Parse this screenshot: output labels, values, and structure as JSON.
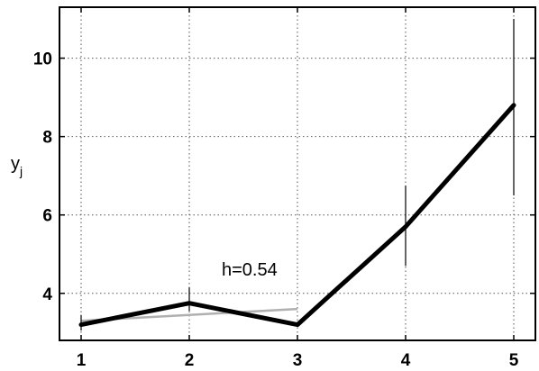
{
  "chart_data": {
    "type": "line",
    "x": [
      1,
      2,
      3,
      4,
      5
    ],
    "series": [
      {
        "values": [
          3.2,
          3.75,
          3.2,
          5.7,
          8.8
        ],
        "color": "#000000",
        "style": "thick"
      },
      {
        "x": [
          1,
          2,
          3
        ],
        "values": [
          3.3,
          3.45,
          3.6
        ],
        "color": "#b0b0b0",
        "style": "thin"
      }
    ],
    "error_bars": [
      {
        "x": 1,
        "low": 3.05,
        "high": 3.45
      },
      {
        "x": 2,
        "low": 3.55,
        "high": 4.15
      },
      {
        "x": 4,
        "low": 4.7,
        "high": 6.75
      },
      {
        "x": 5,
        "low": 6.5,
        "high": 11.0
      }
    ],
    "ylabel": "y",
    "ylabel_subscript": "j",
    "xlabel": "",
    "title": "",
    "xlim": [
      0.8,
      5.2
    ],
    "ylim": [
      2.8,
      11.3
    ],
    "xticks": [
      1,
      2,
      3,
      4,
      5
    ],
    "yticks": [
      4,
      6,
      8,
      10
    ],
    "grid": true,
    "annotation": {
      "text": "h=0.54",
      "x": 2.3,
      "y": 4.45
    }
  }
}
